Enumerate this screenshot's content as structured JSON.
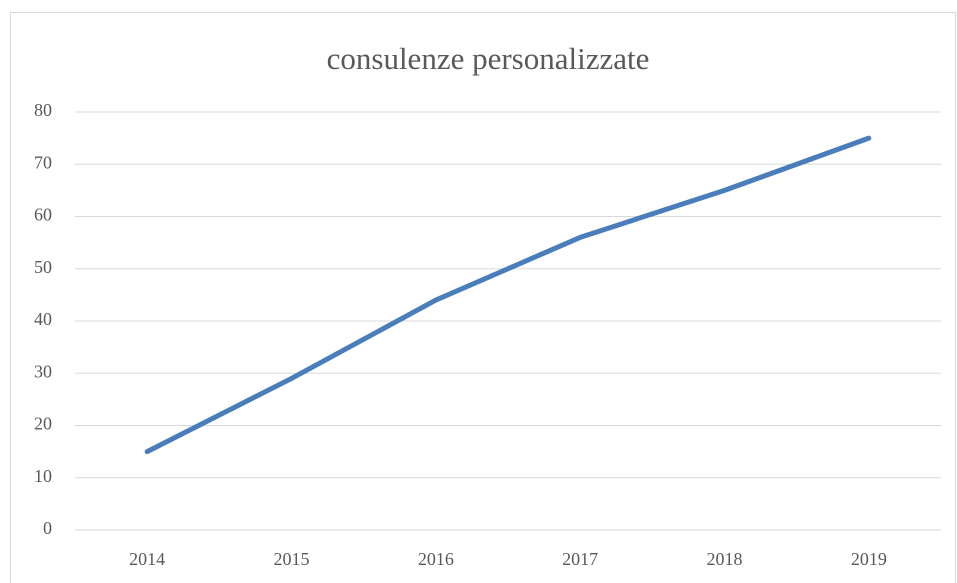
{
  "chart_data": {
    "type": "line",
    "title": "consulenze personalizzate",
    "categories": [
      "2014",
      "2015",
      "2016",
      "2017",
      "2018",
      "2019"
    ],
    "series": [
      {
        "name": "consulenze personalizzate",
        "color": "#4a7ebb",
        "values": [
          15,
          29,
          44,
          56,
          65,
          75
        ]
      }
    ],
    "ylim": [
      0,
      80
    ],
    "yticks": [
      0,
      10,
      20,
      30,
      40,
      50,
      60,
      70,
      80
    ],
    "grid": true
  }
}
